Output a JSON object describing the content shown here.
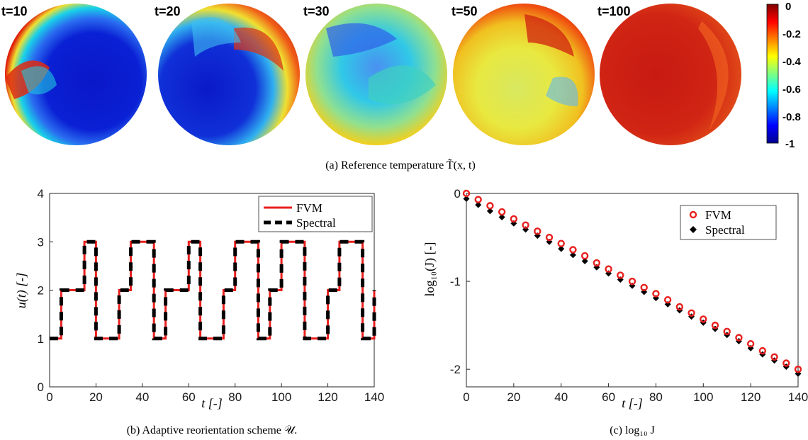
{
  "figure_a": {
    "time_labels": [
      "t=10",
      "t=20",
      "t=30",
      "t=50",
      "t=100"
    ],
    "colorbar": {
      "min": -1,
      "max": 0,
      "ticks": [
        "0",
        "-0.2",
        "-0.4",
        "-0.6",
        "-0.8",
        "-1"
      ],
      "colormap": "jet"
    },
    "caption": "(a) Reference temperature T̃(x, t)"
  },
  "chart_data": [
    {
      "type": "line",
      "panel": "b",
      "caption": "(b) Adaptive reorientation scheme 𝒰.",
      "xlabel": "t [-]",
      "ylabel": "u(t) [-]",
      "xlim": [
        0,
        140
      ],
      "ylim": [
        0,
        4
      ],
      "xticks": [
        0,
        20,
        40,
        60,
        80,
        100,
        120,
        140
      ],
      "yticks": [
        0,
        1,
        2,
        3,
        4
      ],
      "legend_position": "top-right",
      "step": true,
      "x": [
        0,
        5,
        10,
        15,
        20,
        25,
        30,
        35,
        40,
        45,
        50,
        55,
        60,
        65,
        70,
        75,
        80,
        85,
        90,
        95,
        100,
        105,
        110,
        115,
        120,
        125,
        130,
        135,
        140
      ],
      "series": [
        {
          "name": "FVM",
          "color": "#e8201e",
          "style": "solid",
          "values": [
            1,
            2,
            2,
            3,
            1,
            1,
            2,
            3,
            3,
            1,
            2,
            2,
            3,
            1,
            1,
            2,
            3,
            3,
            1,
            2,
            3,
            3,
            1,
            1,
            2,
            3,
            3,
            1,
            2
          ]
        },
        {
          "name": "Spectral",
          "color": "#000000",
          "style": "dashed",
          "values": [
            1,
            2,
            2,
            3,
            1,
            1,
            2,
            3,
            3,
            1,
            2,
            2,
            3,
            1,
            1,
            2,
            3,
            3,
            1,
            2,
            3,
            3,
            1,
            1,
            2,
            3,
            3,
            1,
            2
          ]
        }
      ]
    },
    {
      "type": "scatter",
      "panel": "c",
      "caption": "(c) log₁₀ J",
      "xlabel": "t [-]",
      "ylabel": "log₁₀(J) [-]",
      "xlim": [
        0,
        140
      ],
      "ylim": [
        -2.2,
        0
      ],
      "xticks": [
        0,
        20,
        40,
        60,
        80,
        100,
        120,
        140
      ],
      "yticks": [
        0,
        -1,
        -2
      ],
      "legend_position": "top-right",
      "x": [
        0,
        5,
        10,
        15,
        20,
        25,
        30,
        35,
        40,
        45,
        50,
        55,
        60,
        65,
        70,
        75,
        80,
        85,
        90,
        95,
        100,
        105,
        110,
        115,
        120,
        125,
        130,
        135,
        140
      ],
      "series": [
        {
          "name": "FVM",
          "color": "#e8201e",
          "marker": "o",
          "values": [
            0.0,
            -0.07,
            -0.14,
            -0.21,
            -0.29,
            -0.36,
            -0.43,
            -0.5,
            -0.57,
            -0.64,
            -0.71,
            -0.79,
            -0.86,
            -0.93,
            -1.0,
            -1.07,
            -1.14,
            -1.21,
            -1.29,
            -1.36,
            -1.43,
            -1.5,
            -1.57,
            -1.64,
            -1.71,
            -1.79,
            -1.86,
            -1.93,
            -2.0
          ]
        },
        {
          "name": "Spectral",
          "color": "#000000",
          "marker": "diamond",
          "values": [
            -0.06,
            -0.13,
            -0.2,
            -0.27,
            -0.34,
            -0.41,
            -0.48,
            -0.55,
            -0.63,
            -0.7,
            -0.77,
            -0.84,
            -0.91,
            -0.98,
            -1.05,
            -1.12,
            -1.19,
            -1.26,
            -1.33,
            -1.4,
            -1.47,
            -1.54,
            -1.61,
            -1.68,
            -1.76,
            -1.83,
            -1.9,
            -1.97,
            -2.05
          ]
        }
      ]
    }
  ]
}
